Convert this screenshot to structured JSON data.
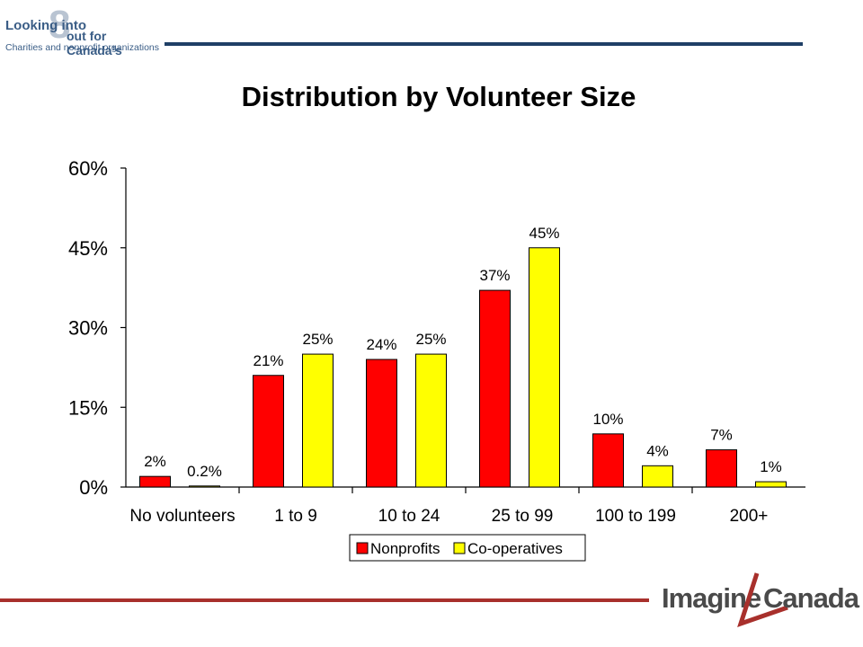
{
  "logo": {
    "line1": "Looking into",
    "numeral": "8",
    "line2": "out for Canada’s",
    "line3": "Charities and nonprofit organizations"
  },
  "brand": {
    "word1": "Imagine",
    "word2": "Canada"
  },
  "colors": {
    "nonprofits": "#ff0000",
    "cooperatives": "#ffff00",
    "top_rule": "#1f3f66",
    "bottom_rule": "#a8302c"
  },
  "chart_data": {
    "type": "bar",
    "title": "Distribution by Volunteer Size",
    "categories": [
      "No volunteers",
      "1 to 9",
      "10 to 24",
      "25 to 99",
      "100 to 199",
      "200+"
    ],
    "series": [
      {
        "name": "Nonprofits",
        "values": [
          2,
          21,
          24,
          37,
          10,
          7
        ],
        "labels": [
          "2%",
          "21%",
          "24%",
          "37%",
          "10%",
          "7%"
        ]
      },
      {
        "name": "Co-operatives",
        "values": [
          0.2,
          25,
          25,
          45,
          4,
          1
        ],
        "labels": [
          "0.2%",
          "25%",
          "25%",
          "45%",
          "4%",
          "1%"
        ]
      }
    ],
    "ylim": [
      0,
      60
    ],
    "yticks": [
      "0%",
      "15%",
      "30%",
      "45%",
      "60%"
    ],
    "ytick_values": [
      0,
      15,
      30,
      45,
      60
    ],
    "grid": false,
    "legend": "bottom-center"
  }
}
